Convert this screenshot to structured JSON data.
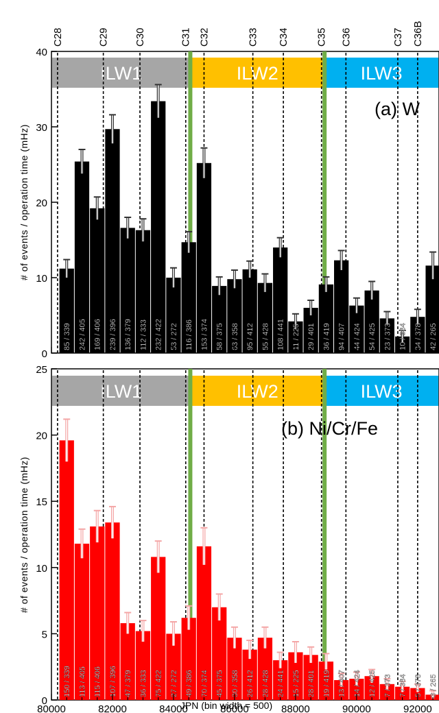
{
  "campaigns": [
    {
      "label": "C28",
      "x": 80200
    },
    {
      "label": "C29",
      "x": 81700
    },
    {
      "label": "C30",
      "x": 82900
    },
    {
      "label": "C31",
      "x": 84400
    },
    {
      "label": "C32",
      "x": 85000
    },
    {
      "label": "C33",
      "x": 86600
    },
    {
      "label": "C34",
      "x": 87600
    },
    {
      "label": "C35",
      "x": 88850
    },
    {
      "label": "C36",
      "x": 89650
    },
    {
      "label": "C37",
      "x": 91350
    },
    {
      "label": "C36B",
      "x": 92000
    }
  ],
  "ilw_bands": [
    {
      "label": "ILW1",
      "from": 80000,
      "to": 84550,
      "color": "#a6a6a6"
    },
    {
      "label": "ILW2",
      "from": 84550,
      "to": 88950,
      "color": "#ffc000"
    },
    {
      "label": "ILW3",
      "from": 88950,
      "to": 92700,
      "color": "#00b0f0"
    }
  ],
  "green_lines": [
    84550,
    88950
  ],
  "colors": {
    "black_bars": "#000000",
    "red_bars": "#ff0000",
    "red_err": "#f4a6a6",
    "green": "#70ad47"
  },
  "chart_data": [
    {
      "type": "bar",
      "title": "(a) W",
      "ylabel": "# of events / operation time (mHz)",
      "xlabel": "JPN (bin width = 500)",
      "ylim": [
        0,
        40
      ],
      "yticks": [
        0,
        10,
        20,
        30,
        40
      ],
      "xlim": [
        80000,
        92700
      ],
      "bin_width": 500,
      "bars": [
        {
          "x": 80500,
          "value": 11.2,
          "err": 1.2,
          "label": "85 / 339"
        },
        {
          "x": 81000,
          "value": 25.4,
          "err": 1.6,
          "label": "242 / 405"
        },
        {
          "x": 81500,
          "value": 19.2,
          "err": 1.5,
          "label": "169 / 406"
        },
        {
          "x": 82000,
          "value": 29.7,
          "err": 1.9,
          "label": "239 / 396"
        },
        {
          "x": 82500,
          "value": 16.6,
          "err": 1.4,
          "label": "136 / 379"
        },
        {
          "x": 83000,
          "value": 16.3,
          "err": 1.5,
          "label": "112 / 333"
        },
        {
          "x": 83500,
          "value": 33.4,
          "err": 2.2,
          "label": "232 / 422"
        },
        {
          "x": 84000,
          "value": 10.0,
          "err": 1.3,
          "label": "53 / 272"
        },
        {
          "x": 84500,
          "value": 14.7,
          "err": 1.4,
          "label": "116 / 386"
        },
        {
          "x": 85000,
          "value": 25.2,
          "err": 2.0,
          "label": "153 / 374"
        },
        {
          "x": 85500,
          "value": 8.9,
          "err": 1.2,
          "label": "58 / 375"
        },
        {
          "x": 86000,
          "value": 9.8,
          "err": 1.2,
          "label": "63 / 358"
        },
        {
          "x": 86500,
          "value": 11.1,
          "err": 1.1,
          "label": "95 / 412"
        },
        {
          "x": 87000,
          "value": 9.3,
          "err": 1.2,
          "label": "55 / 428"
        },
        {
          "x": 87500,
          "value": 14.0,
          "err": 1.3,
          "label": "108 / 441"
        },
        {
          "x": 88000,
          "value": 4.2,
          "err": 1.0,
          "label": "11 / 225"
        },
        {
          "x": 88500,
          "value": 6.0,
          "err": 1.0,
          "label": "29 / 401"
        },
        {
          "x": 89000,
          "value": 9.1,
          "err": 1.0,
          "label": "36 / 419"
        },
        {
          "x": 89500,
          "value": 12.3,
          "err": 1.3,
          "label": "94 / 407"
        },
        {
          "x": 90000,
          "value": 6.3,
          "err": 1.0,
          "label": "44 / 424"
        },
        {
          "x": 90500,
          "value": 8.3,
          "err": 1.2,
          "label": "54 / 425"
        },
        {
          "x": 91000,
          "value": 4.6,
          "err": 0.9,
          "label": "23 / 373"
        },
        {
          "x": 91500,
          "value": 2.2,
          "err": 0.8,
          "label": "10 / 384"
        },
        {
          "x": 92000,
          "value": 4.8,
          "err": 1.0,
          "label": "34 / 378"
        },
        {
          "x": 92500,
          "value": 11.6,
          "err": 1.8,
          "label": "42 / 265"
        }
      ]
    },
    {
      "type": "bar",
      "title": "(b) Ni/Cr/Fe",
      "ylabel": "# of events / operation time (mHz)",
      "xlabel": "JPN (bin width = 500)",
      "ylim": [
        0,
        25
      ],
      "yticks": [
        0,
        5,
        10,
        15,
        20,
        25
      ],
      "xlim": [
        80000,
        92700
      ],
      "xticks": [
        80000,
        82000,
        84000,
        86000,
        88000,
        90000,
        92000
      ],
      "bin_width": 500,
      "bars": [
        {
          "x": 80500,
          "value": 19.6,
          "err": 1.6,
          "label": "150 / 339"
        },
        {
          "x": 81000,
          "value": 11.8,
          "err": 1.1,
          "label": "113 / 405"
        },
        {
          "x": 81500,
          "value": 13.1,
          "err": 1.2,
          "label": "115 / 406"
        },
        {
          "x": 82000,
          "value": 13.4,
          "err": 1.2,
          "label": "107 / 396"
        },
        {
          "x": 82500,
          "value": 5.8,
          "err": 0.8,
          "label": "47 / 379"
        },
        {
          "x": 83000,
          "value": 5.2,
          "err": 0.8,
          "label": "36 / 333"
        },
        {
          "x": 83500,
          "value": 10.8,
          "err": 1.2,
          "label": "75 / 422"
        },
        {
          "x": 84000,
          "value": 5.0,
          "err": 0.9,
          "label": "27 / 272"
        },
        {
          "x": 84500,
          "value": 6.2,
          "err": 0.9,
          "label": "49 / 386"
        },
        {
          "x": 85000,
          "value": 11.6,
          "err": 1.4,
          "label": "70 / 374"
        },
        {
          "x": 85500,
          "value": 7.0,
          "err": 1.0,
          "label": "45 / 375"
        },
        {
          "x": 86000,
          "value": 4.7,
          "err": 0.8,
          "label": "30 / 358"
        },
        {
          "x": 86500,
          "value": 3.8,
          "err": 0.7,
          "label": "26 / 412"
        },
        {
          "x": 87000,
          "value": 4.7,
          "err": 0.8,
          "label": "28 / 428"
        },
        {
          "x": 87500,
          "value": 3.0,
          "err": 0.6,
          "label": "24 / 441"
        },
        {
          "x": 88000,
          "value": 3.6,
          "err": 0.8,
          "label": "15 / 225"
        },
        {
          "x": 88500,
          "value": 3.4,
          "err": 0.6,
          "label": "28 / 401"
        },
        {
          "x": 89000,
          "value": 2.9,
          "err": 0.6,
          "label": "19 / 419"
        },
        {
          "x": 89500,
          "value": 1.5,
          "err": 0.5,
          "label": "13 / 407"
        },
        {
          "x": 90000,
          "value": 1.6,
          "err": 0.5,
          "label": "14 / 424"
        },
        {
          "x": 90500,
          "value": 1.8,
          "err": 0.5,
          "label": "12 / 425"
        },
        {
          "x": 91000,
          "value": 1.2,
          "err": 0.4,
          "label": "7 / 373"
        },
        {
          "x": 91500,
          "value": 1.0,
          "err": 0.4,
          "label": "7 / 384"
        },
        {
          "x": 92000,
          "value": 0.9,
          "err": 0.3,
          "label": "5 / 378"
        },
        {
          "x": 92500,
          "value": 0.4,
          "err": 0.3,
          "label": "3 / 265"
        }
      ]
    }
  ]
}
